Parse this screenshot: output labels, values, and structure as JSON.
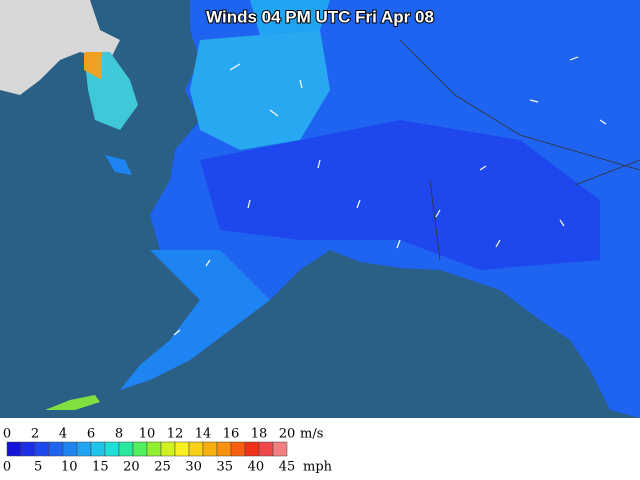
{
  "title": "Winds 04 PM UTC Fri Apr 08",
  "legend": {
    "colors": [
      "#1414d8",
      "#1c2ee6",
      "#1e48ee",
      "#1e64f0",
      "#1e84f2",
      "#1ea4f0",
      "#1ec4ea",
      "#1ee0d8",
      "#28e8a0",
      "#50f060",
      "#90f030",
      "#d0f020",
      "#f8f020",
      "#f8d018",
      "#f8b010",
      "#f89010",
      "#f86010",
      "#f03018",
      "#f04848",
      "#f08080"
    ],
    "ms_ticks": [
      0,
      2,
      4,
      6,
      8,
      10,
      12,
      14,
      16,
      18,
      20
    ],
    "ms_unit": "m/s",
    "mph_ticks": [
      0,
      5,
      10,
      15,
      20,
      25,
      30,
      35,
      40,
      45
    ],
    "mph_unit": "mph"
  }
}
